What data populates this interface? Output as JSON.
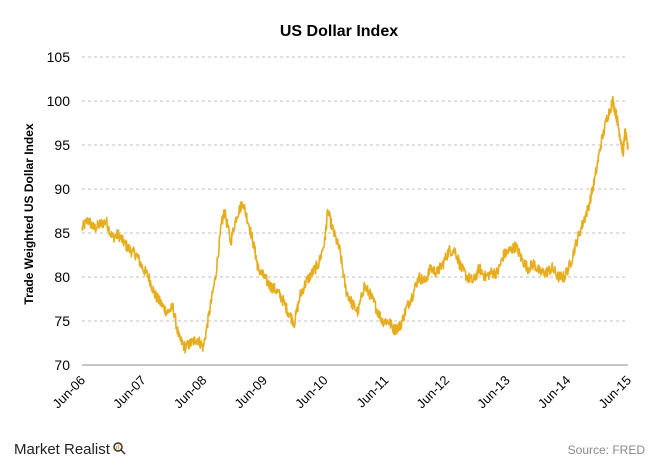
{
  "chart_data": {
    "type": "line",
    "title": "US Dollar Index",
    "xlabel": "",
    "ylabel": "Trade Weighted US Dollar Index",
    "ylim": [
      70,
      105
    ],
    "yticks": [
      70,
      75,
      80,
      85,
      90,
      95,
      100,
      105
    ],
    "xlim": [
      0,
      9
    ],
    "xticks": [
      {
        "pos": 0,
        "label": "Jun-06"
      },
      {
        "pos": 1,
        "label": "Jun-07"
      },
      {
        "pos": 2,
        "label": "Jun-08"
      },
      {
        "pos": 3,
        "label": "Jun-09"
      },
      {
        "pos": 4,
        "label": "Jun-10"
      },
      {
        "pos": 5,
        "label": "Jun-11"
      },
      {
        "pos": 6,
        "label": "Jun-12"
      },
      {
        "pos": 7,
        "label": "Jun-13"
      },
      {
        "pos": 8,
        "label": "Jun-14"
      },
      {
        "pos": 9,
        "label": "Jun-15"
      }
    ],
    "grid": true,
    "series": [
      {
        "name": "US Dollar Index",
        "color": "#e6ae1f",
        "x": [
          0,
          0.1,
          0.2,
          0.3,
          0.4,
          0.5,
          0.6,
          0.7,
          0.8,
          0.9,
          1.0,
          1.1,
          1.2,
          1.3,
          1.4,
          1.5,
          1.6,
          1.7,
          1.8,
          1.9,
          2.0,
          2.1,
          2.2,
          2.3,
          2.35,
          2.45,
          2.55,
          2.65,
          2.75,
          2.85,
          2.9,
          3.0,
          3.1,
          3.2,
          3.3,
          3.4,
          3.5,
          3.6,
          3.7,
          3.8,
          3.9,
          4.0,
          4.05,
          4.15,
          4.25,
          4.35,
          4.45,
          4.55,
          4.65,
          4.75,
          4.85,
          4.95,
          5.05,
          5.15,
          5.25,
          5.35,
          5.45,
          5.55,
          5.65,
          5.75,
          5.85,
          5.95,
          6.05,
          6.15,
          6.25,
          6.35,
          6.45,
          6.55,
          6.65,
          6.75,
          6.85,
          6.95,
          7.05,
          7.15,
          7.25,
          7.35,
          7.45,
          7.55,
          7.65,
          7.75,
          7.85,
          7.95,
          8.05,
          8.15,
          8.25,
          8.35,
          8.45,
          8.55,
          8.65,
          8.75,
          8.82,
          8.87,
          8.92,
          8.95,
          9.0
        ],
        "values": [
          85.5,
          86.5,
          85.5,
          86.0,
          86.3,
          84.5,
          84.8,
          83.8,
          83.0,
          82.5,
          81.0,
          80.0,
          78.0,
          77.0,
          76.0,
          76.5,
          73.0,
          72.0,
          72.5,
          73.0,
          72.0,
          76.0,
          80.0,
          86.0,
          87.5,
          84.0,
          87.0,
          88.5,
          86.0,
          83.0,
          81.0,
          80.0,
          79.0,
          78.5,
          77.5,
          76.0,
          74.8,
          78.0,
          79.5,
          80.5,
          81.5,
          84.0,
          87.5,
          85.0,
          83.0,
          78.5,
          77.0,
          76.0,
          79.0,
          78.0,
          76.5,
          75.0,
          75.0,
          74.0,
          74.5,
          76.5,
          78.0,
          80.0,
          79.5,
          81.0,
          80.5,
          81.5,
          83.0,
          83.0,
          81.0,
          80.0,
          79.5,
          81.0,
          80.0,
          80.5,
          80.5,
          82.5,
          83.0,
          83.5,
          82.0,
          81.0,
          81.5,
          80.5,
          80.5,
          81.0,
          80.0,
          80.0,
          81.5,
          84.0,
          86.0,
          88.0,
          91.0,
          95.0,
          98.0,
          100.0,
          98.0,
          96.0,
          94.0,
          96.5,
          94.5
        ]
      }
    ],
    "source": "Source: FRED"
  },
  "footer": {
    "brand": "Market Realist"
  },
  "colors": {
    "line": "#e6ae1f",
    "grid": "#bfbfbf"
  }
}
